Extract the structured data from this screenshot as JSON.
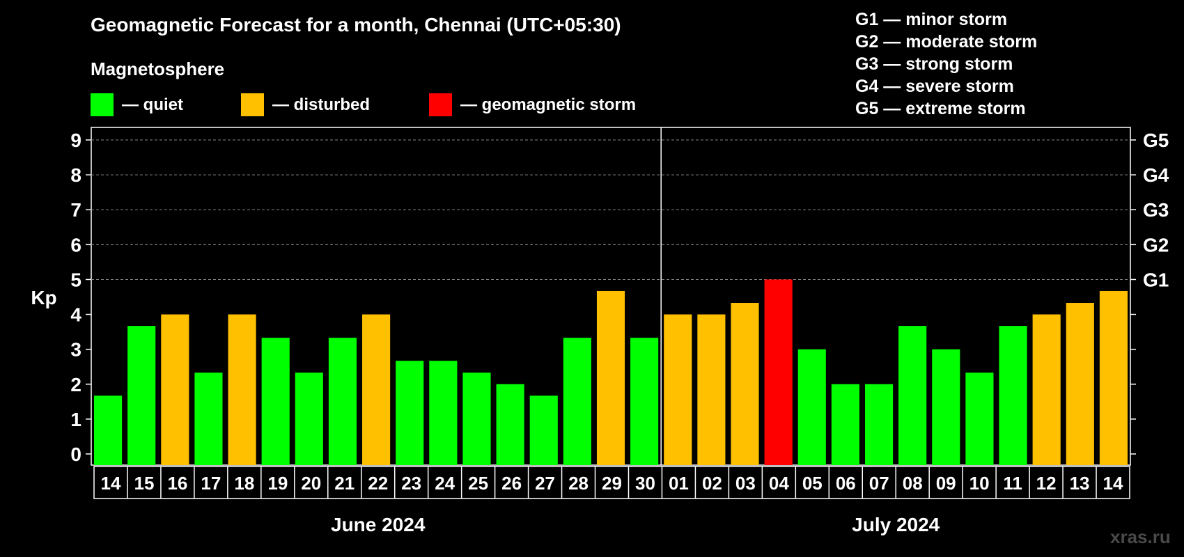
{
  "title": "Geomagnetic Forecast for a month, Chennai (UTC+05:30)",
  "subtitle": "Magnetosphere",
  "legend": {
    "items": [
      {
        "label": "— quiet",
        "color": "#00ff00"
      },
      {
        "label": "— disturbed",
        "color": "#ffc000"
      },
      {
        "label": "— geomagnetic storm",
        "color": "#ff0000"
      }
    ]
  },
  "storm_scale": [
    "G1 — minor storm",
    "G2 — moderate storm",
    "G3 — strong storm",
    "G4 — severe storm",
    "G5 — extreme storm"
  ],
  "watermark": "xras.ru",
  "chart_data": {
    "type": "bar",
    "title": "Geomagnetic Forecast for a month, Chennai (UTC+05:30)",
    "ylabel": "Kp",
    "ylim": [
      0,
      9
    ],
    "yticks": [
      "0",
      "1",
      "2",
      "3",
      "4",
      "5",
      "6",
      "7",
      "8",
      "9"
    ],
    "right_axis_labels": [
      {
        "value": 5,
        "label": "G1"
      },
      {
        "value": 6,
        "label": "G2"
      },
      {
        "value": 7,
        "label": "G3"
      },
      {
        "value": 8,
        "label": "G4"
      },
      {
        "value": 9,
        "label": "G5"
      }
    ],
    "categories": [
      "14",
      "15",
      "16",
      "17",
      "18",
      "19",
      "20",
      "21",
      "22",
      "23",
      "24",
      "25",
      "26",
      "27",
      "28",
      "29",
      "30",
      "01",
      "02",
      "03",
      "04",
      "05",
      "06",
      "07",
      "08",
      "09",
      "10",
      "11",
      "12",
      "13",
      "14"
    ],
    "values": [
      1.67,
      3.67,
      4,
      2.33,
      4,
      3.33,
      2.33,
      3.33,
      4,
      2.67,
      2.67,
      2.33,
      2,
      1.67,
      3.33,
      4.67,
      3.33,
      4,
      4,
      4.33,
      5,
      3,
      2,
      2,
      3.67,
      3,
      2.33,
      3.67,
      4,
      4.33,
      4.67
    ],
    "levels": [
      "quiet",
      "quiet",
      "disturbed",
      "quiet",
      "disturbed",
      "quiet",
      "quiet",
      "quiet",
      "disturbed",
      "quiet",
      "quiet",
      "quiet",
      "quiet",
      "quiet",
      "quiet",
      "disturbed",
      "quiet",
      "disturbed",
      "disturbed",
      "disturbed",
      "storm",
      "quiet",
      "quiet",
      "quiet",
      "quiet",
      "quiet",
      "quiet",
      "quiet",
      "disturbed",
      "disturbed",
      "disturbed"
    ],
    "level_colors": {
      "quiet": "#00ff00",
      "disturbed": "#ffc000",
      "storm": "#ff0000"
    },
    "months": [
      {
        "label": "June 2024",
        "start": 0,
        "end": 16
      },
      {
        "label": "July 2024",
        "start": 17,
        "end": 30
      }
    ],
    "grid": true
  }
}
